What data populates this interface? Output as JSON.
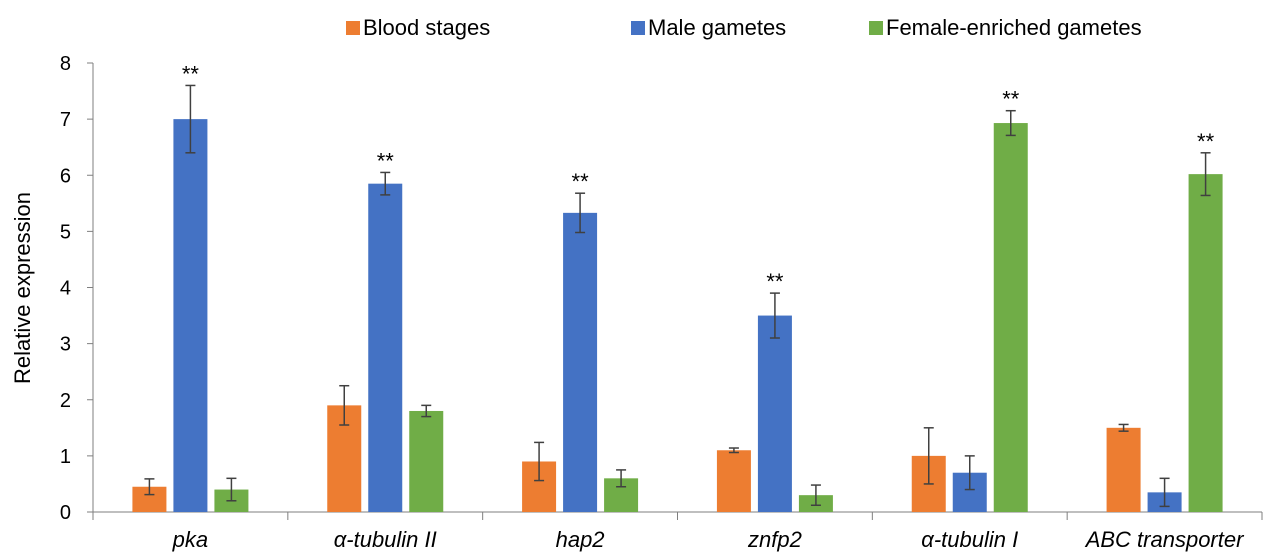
{
  "chart_data": {
    "type": "bar",
    "title": "",
    "xlabel": "",
    "ylabel": "Relative expression",
    "ylim": [
      0,
      8
    ],
    "yticks": [
      0,
      1,
      2,
      3,
      4,
      5,
      6,
      7,
      8
    ],
    "grid": false,
    "legend_position": "top",
    "categories": [
      "pka",
      "α-tubulin II",
      "hap2",
      "znfp2",
      "α-tubulin I",
      "ABC transporter"
    ],
    "series": [
      {
        "name": "Blood stages",
        "color": "#ED7D31",
        "values": [
          0.45,
          1.9,
          0.9,
          1.1,
          1.0,
          1.5
        ],
        "errors": [
          0.14,
          0.35,
          0.34,
          0.04,
          0.5,
          0.06
        ],
        "labels": [
          "",
          "",
          "",
          "",
          "",
          ""
        ]
      },
      {
        "name": "Male gametes",
        "color": "#4472C4",
        "values": [
          7.0,
          5.85,
          5.33,
          3.5,
          0.7,
          0.35
        ],
        "errors": [
          0.6,
          0.2,
          0.35,
          0.4,
          0.3,
          0.25
        ],
        "labels": [
          "**",
          "**",
          "**",
          "**",
          "",
          ""
        ]
      },
      {
        "name": "Female-enriched gametes",
        "color": "#70AD47",
        "values": [
          0.4,
          1.8,
          0.6,
          0.3,
          6.93,
          6.02
        ],
        "errors": [
          0.2,
          0.1,
          0.15,
          0.18,
          0.22,
          0.38
        ],
        "labels": [
          "",
          "",
          "",
          "",
          "**",
          "**"
        ]
      }
    ]
  }
}
